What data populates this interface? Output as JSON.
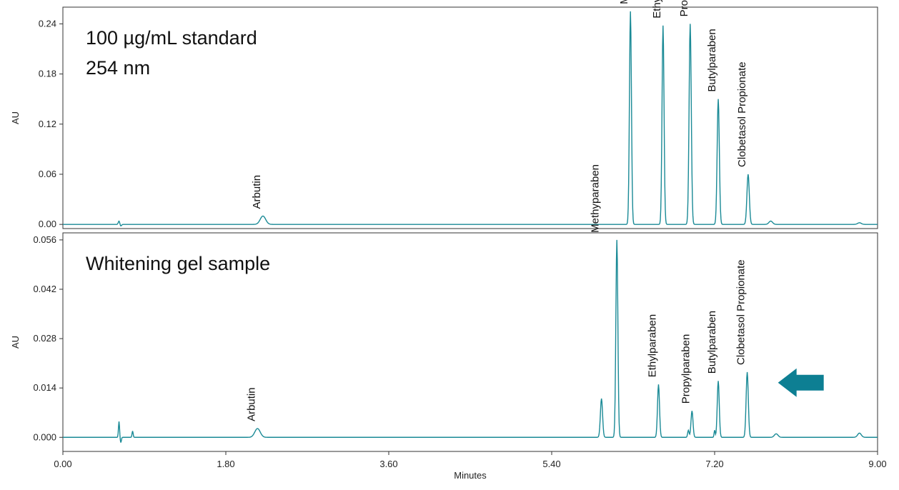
{
  "chart_data": [
    {
      "type": "line",
      "title_lines": [
        "100 µg/mL standard",
        "254 nm"
      ],
      "ylabel": "AU",
      "xlim": [
        0,
        9
      ],
      "ylim": [
        -0.005,
        0.26
      ],
      "yticks": [
        0.0,
        0.06,
        0.12,
        0.18,
        0.24
      ],
      "ytick_labels": [
        "0.00",
        "0.06",
        "0.12",
        "0.18",
        "0.24"
      ],
      "series": [
        {
          "baseline": 0.0,
          "peaks": [
            {
              "x": 0.62,
              "y": 0.004,
              "w": 0.008
            },
            {
              "x": 0.64,
              "y": -0.002,
              "w": 0.008
            },
            {
              "x": 2.21,
              "y": 0.01,
              "w": 0.03
            },
            {
              "x": 6.27,
              "y": 0.255,
              "w": 0.011
            },
            {
              "x": 6.63,
              "y": 0.238,
              "w": 0.011
            },
            {
              "x": 6.93,
              "y": 0.24,
              "w": 0.012
            },
            {
              "x": 7.24,
              "y": 0.15,
              "w": 0.012
            },
            {
              "x": 7.57,
              "y": 0.06,
              "w": 0.013
            },
            {
              "x": 7.82,
              "y": 0.004,
              "w": 0.02
            },
            {
              "x": 8.8,
              "y": 0.002,
              "w": 0.02
            }
          ]
        }
      ],
      "peak_labels": [
        {
          "text": "Arbutin",
          "x": 2.21,
          "y": 0.01
        },
        {
          "text": "Methyparaben",
          "x": 6.27,
          "y": 0.255
        },
        {
          "text": "Ethylparaben",
          "x": 6.63,
          "y": 0.238
        },
        {
          "text": "Propylparaben",
          "x": 6.93,
          "y": 0.24
        },
        {
          "text": "Butylparaben",
          "x": 7.24,
          "y": 0.15
        },
        {
          "text": "Clobetasol Propionate",
          "x": 7.57,
          "y": 0.06
        }
      ],
      "grid": false
    },
    {
      "type": "line",
      "title_lines": [
        "Whitening gel sample"
      ],
      "ylabel": "AU",
      "xlabel": "Minutes",
      "xlim": [
        0,
        9
      ],
      "ylim": [
        -0.004,
        0.058
      ],
      "xticks": [
        0.0,
        1.8,
        3.6,
        5.4,
        7.2,
        9.0
      ],
      "xtick_labels": [
        "0.00",
        "1.80",
        "3.60",
        "5.40",
        "7.20",
        "9.00"
      ],
      "yticks": [
        0.0,
        0.014,
        0.028,
        0.042,
        0.056
      ],
      "ytick_labels": [
        "0.000",
        "0.014",
        "0.028",
        "0.042",
        "0.056"
      ],
      "series": [
        {
          "baseline": 0.0,
          "peaks": [
            {
              "x": 0.62,
              "y": 0.0045,
              "w": 0.006
            },
            {
              "x": 0.64,
              "y": -0.0015,
              "w": 0.006
            },
            {
              "x": 0.77,
              "y": 0.0018,
              "w": 0.006
            },
            {
              "x": 2.15,
              "y": 0.0025,
              "w": 0.03
            },
            {
              "x": 5.95,
              "y": 0.011,
              "w": 0.012
            },
            {
              "x": 6.12,
              "y": 0.056,
              "w": 0.011
            },
            {
              "x": 6.58,
              "y": 0.015,
              "w": 0.011
            },
            {
              "x": 6.91,
              "y": 0.002,
              "w": 0.008
            },
            {
              "x": 6.95,
              "y": 0.0075,
              "w": 0.011
            },
            {
              "x": 7.2,
              "y": 0.002,
              "w": 0.006
            },
            {
              "x": 7.24,
              "y": 0.016,
              "w": 0.011
            },
            {
              "x": 7.56,
              "y": 0.0185,
              "w": 0.012
            },
            {
              "x": 7.88,
              "y": 0.001,
              "w": 0.02
            },
            {
              "x": 8.8,
              "y": 0.0012,
              "w": 0.02
            }
          ]
        }
      ],
      "peak_labels": [
        {
          "text": "Arbutin",
          "x": 2.15,
          "y": 0.0025
        },
        {
          "text": "Methyparaben",
          "x": 5.95,
          "y": 0.056
        },
        {
          "text": "Ethylparaben",
          "x": 6.58,
          "y": 0.015
        },
        {
          "text": "Propylparaben",
          "x": 6.95,
          "y": 0.0075
        },
        {
          "text": "Butylparaben",
          "x": 7.24,
          "y": 0.016
        },
        {
          "text": "Clobetasol Propionate",
          "x": 7.56,
          "y": 0.0185
        }
      ],
      "arrow": {
        "x": 7.9,
        "y": 0.0155,
        "direction": "left"
      },
      "grid": false
    }
  ],
  "colors": {
    "trace": "#1a8a96",
    "arrow": "#0d7f93",
    "frame": "#333333"
  }
}
